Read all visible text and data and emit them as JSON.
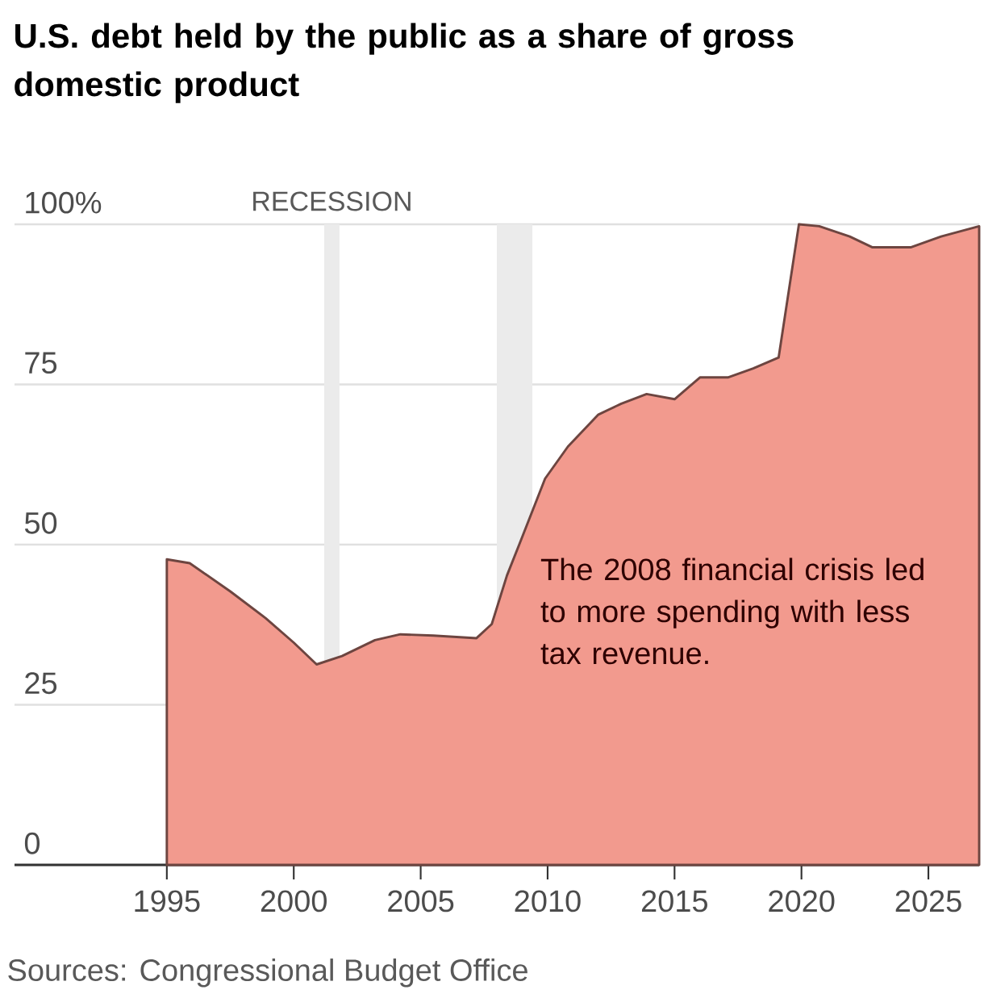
{
  "chart_data": {
    "type": "area",
    "title": "U.S. debt held by the public as a share of gross domestic product",
    "x": [
      1995,
      1995.9,
      1997.5,
      1998.9,
      2000,
      2000.9,
      2001.9,
      2003.2,
      2004.2,
      2005.5,
      2007.2,
      2007.8,
      2008.4,
      2008.9,
      2009.9,
      2010.8,
      2012,
      2012.9,
      2013.9,
      2015,
      2016,
      2017.1,
      2018.1,
      2019.1,
      2019.9,
      2020.7,
      2021.9,
      2022.8,
      2024.3,
      2025.5,
      2027
    ],
    "series": [
      {
        "color": "#f29a8e",
        "values": [
          47.7,
          47.1,
          42.7,
          38.5,
          34.7,
          31.3,
          32.6,
          35.1,
          36,
          35.8,
          35.4,
          37.6,
          45.2,
          50.2,
          60.3,
          65.3,
          70.3,
          72,
          73.5,
          72.7,
          76.1,
          76.1,
          77.5,
          79.2,
          100,
          99.7,
          98.1,
          96.4,
          96.4,
          98.1,
          99.7
        ]
      }
    ],
    "xlim": [
      1989,
      2027
    ],
    "ylim": [
      0,
      100
    ],
    "xticks": [
      1995,
      2000,
      2005,
      2010,
      2015,
      2020,
      2025
    ],
    "yticks": [
      0,
      25,
      50,
      75,
      {
        "value": 100,
        "label": "100%"
      }
    ],
    "grid": "y",
    "bands": [
      {
        "axis": "x",
        "from": 2001.2,
        "to": 2001.8,
        "label": "RECESSION",
        "color": "#ebebeb"
      },
      {
        "axis": "x",
        "from": 2008,
        "to": 2009.4,
        "color": "#ebebeb"
      }
    ],
    "annotations": [
      "The 2008 financial crisis led to more spending with less tax revenue.",
      "Sources: Congressional Budget Office"
    ]
  }
}
